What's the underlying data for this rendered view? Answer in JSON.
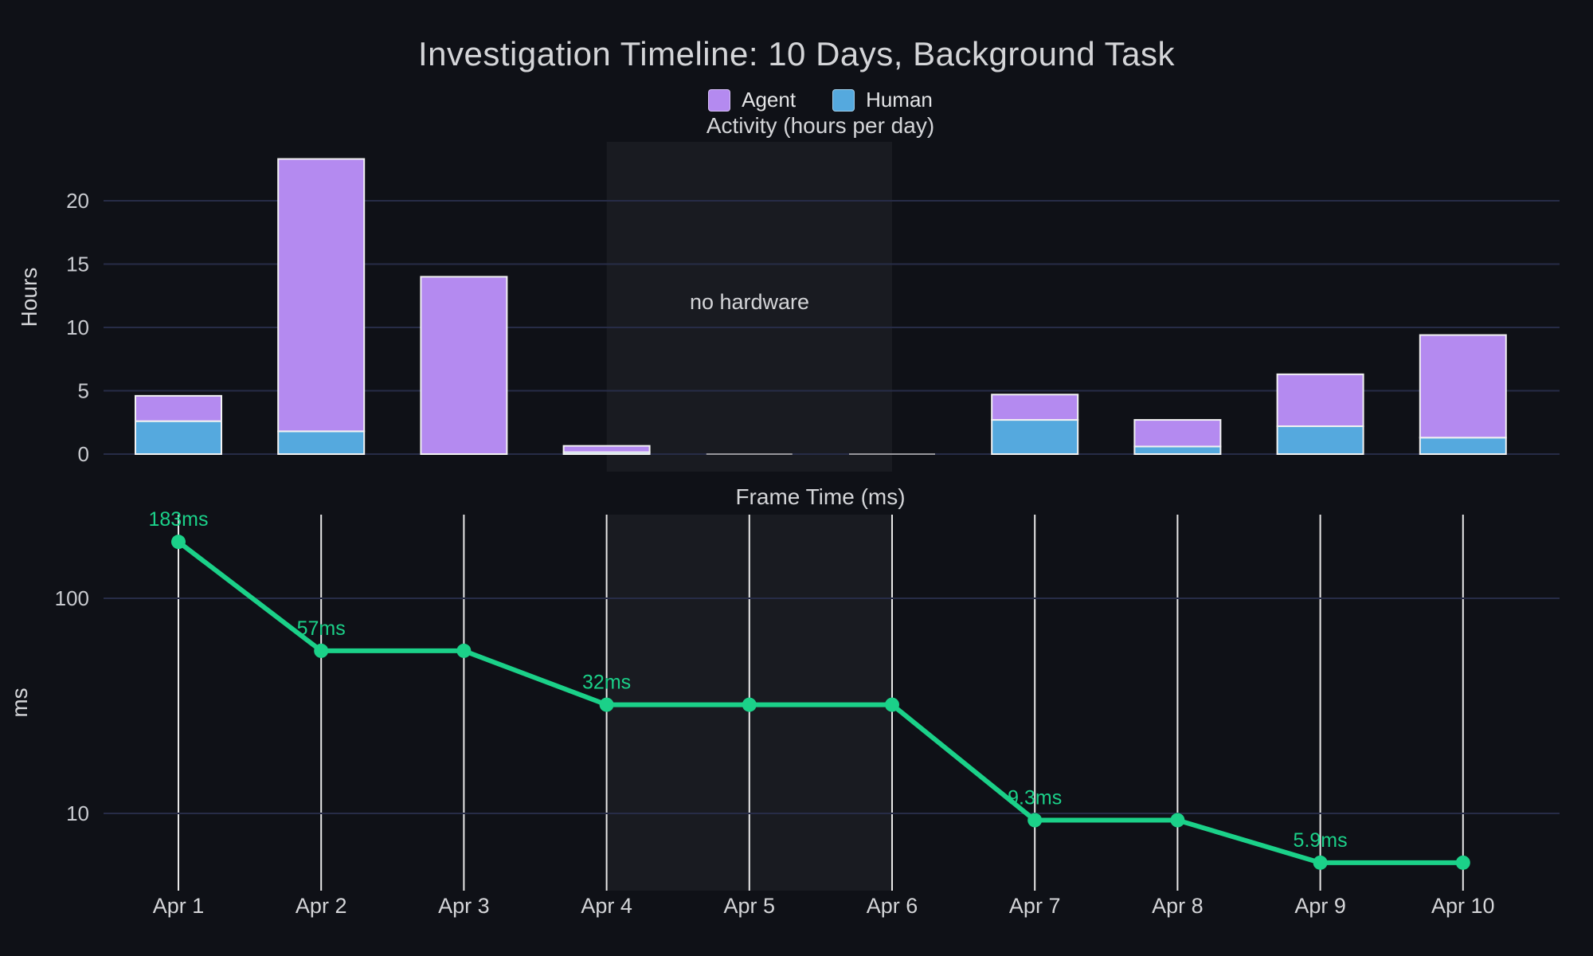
{
  "page": {
    "title": "Investigation Timeline: 10 Days, Background Task"
  },
  "legend": {
    "items": [
      {
        "label": "Agent",
        "color": "#b48af0"
      },
      {
        "label": "Human",
        "color": "#55a9de"
      }
    ]
  },
  "colors": {
    "background": "#0f1117",
    "text": "#d4d5d8",
    "tick_text": "#c9cbd0",
    "grid": "#272c47",
    "x_grid_white": "#e8e8e8",
    "agent": "#b48af0",
    "human": "#55a9de",
    "bar_border": "#f2f2f2",
    "zero_bar": "#97979c",
    "line": "#1bd189",
    "band_fill": "rgba(255,255,255,0.045)"
  },
  "chart_data": [
    {
      "type": "bar",
      "stacked": true,
      "title": "Activity (hours per day)",
      "ylabel": "Hours",
      "categories": [
        "Apr 1",
        "Apr 2",
        "Apr 3",
        "Apr 4",
        "Apr 5",
        "Apr 6",
        "Apr 7",
        "Apr 8",
        "Apr 9",
        "Apr 10"
      ],
      "series": [
        {
          "name": "Human",
          "color_key": "human",
          "values": [
            2.6,
            1.8,
            0,
            0.15,
            0,
            0,
            2.7,
            0.6,
            2.2,
            1.3
          ]
        },
        {
          "name": "Agent",
          "color_key": "agent",
          "values": [
            2.0,
            21.5,
            14.0,
            0.5,
            0,
            0,
            2.0,
            2.1,
            4.1,
            8.1
          ]
        }
      ],
      "yticks": [
        0,
        5,
        10,
        15,
        20
      ],
      "ylim": [
        0,
        24.7
      ],
      "grid": "horizontal",
      "legend_position": "top",
      "annotation": {
        "label": "no hardware",
        "from_index": 3,
        "to_index": 5
      }
    },
    {
      "type": "line",
      "title": "Frame Time (ms)",
      "ylabel": "ms",
      "x": [
        "Apr 1",
        "Apr 2",
        "Apr 3",
        "Apr 4",
        "Apr 5",
        "Apr 6",
        "Apr 7",
        "Apr 8",
        "Apr 9",
        "Apr 10"
      ],
      "values": [
        183,
        57,
        57,
        32,
        32,
        32,
        9.3,
        9.3,
        5.9,
        5.9
      ],
      "point_labels": [
        "183ms",
        "57ms",
        null,
        "32ms",
        null,
        null,
        "9.3ms",
        null,
        "5.9ms",
        null
      ],
      "yscale": "log",
      "yticks": [
        100,
        10
      ],
      "ylim": [
        4.4,
        240
      ],
      "grid": "vertical",
      "shaded_span": {
        "from_index": 3,
        "to_index": 5
      }
    }
  ]
}
